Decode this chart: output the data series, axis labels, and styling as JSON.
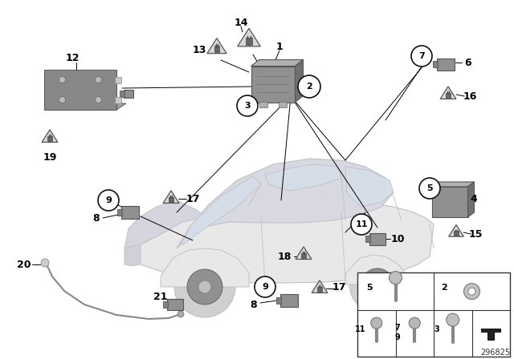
{
  "background_color": "#ffffff",
  "part_number": "296825",
  "car_body_color": "#e8e8e8",
  "car_outline_color": "#c0c0c8",
  "car_glass_color": "#d5dde8",
  "component_gray": "#909090",
  "component_light": "#b0b0b0",
  "component_dark": "#606060",
  "line_color": "#000000",
  "line_width": 0.6,
  "label_fontsize": 8,
  "label_bold": true
}
